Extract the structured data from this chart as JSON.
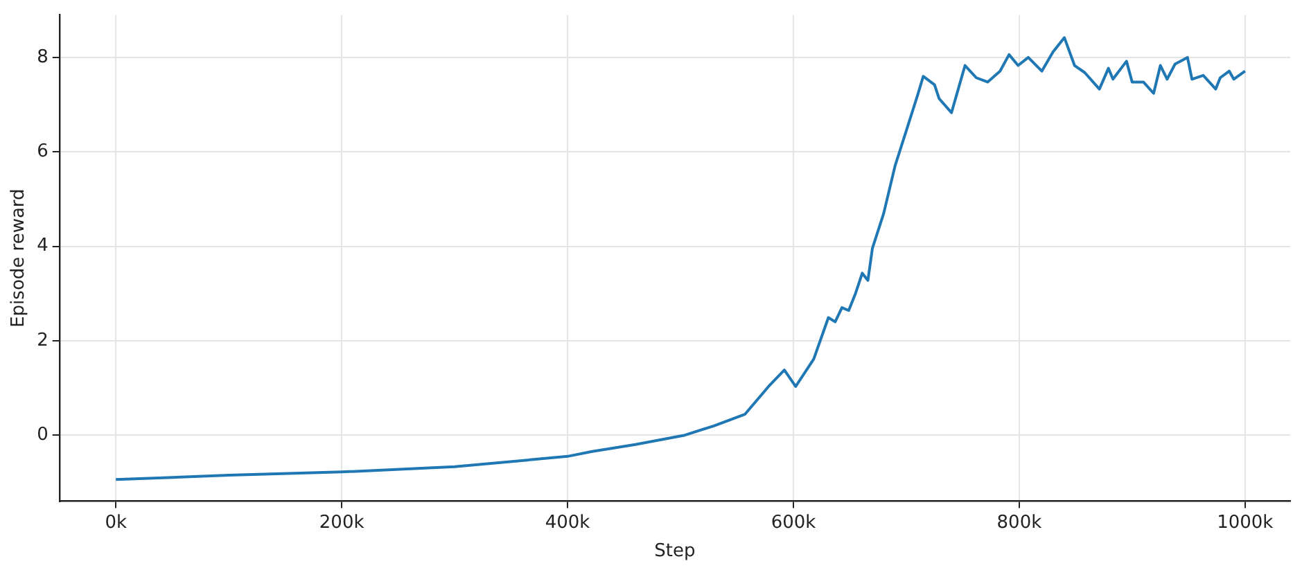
{
  "chart_data": {
    "type": "line",
    "xlabel": "Step",
    "ylabel": "Episode reward",
    "xlim": [
      -50000,
      1040000
    ],
    "ylim": [
      -1.4,
      8.9
    ],
    "xticks": [
      {
        "value": 0,
        "label": "0k"
      },
      {
        "value": 200000,
        "label": "200k"
      },
      {
        "value": 400000,
        "label": "400k"
      },
      {
        "value": 600000,
        "label": "600k"
      },
      {
        "value": 800000,
        "label": "800k"
      },
      {
        "value": 1000000,
        "label": "1000k"
      }
    ],
    "yticks": [
      0,
      2,
      4,
      6,
      8
    ],
    "grid": true,
    "legend": false,
    "marker": "none",
    "line_style": "solid",
    "series": [
      {
        "color": "#1f77b4",
        "x": [
          0,
          100000,
          200000,
          300000,
          400000,
          421000,
          460000,
          504000,
          530000,
          557000,
          578000,
          592000,
          602000,
          618000,
          631000,
          637000,
          643000,
          649000,
          655000,
          661000,
          666000,
          670000,
          680000,
          690000,
          700000,
          710000,
          715000,
          725000,
          729000,
          740000,
          746000,
          752000,
          762000,
          772000,
          783000,
          791000,
          799000,
          808000,
          820000,
          830000,
          840000,
          849000,
          858000,
          871000,
          879000,
          883000,
          895000,
          900000,
          910000,
          919000,
          925000,
          931000,
          938000,
          949000,
          953000,
          963000,
          974000,
          978000,
          986000,
          990000,
          1000000
        ],
        "values": [
          -0.94,
          -0.85,
          -0.78,
          -0.67,
          -0.45,
          -0.35,
          -0.2,
          0.0,
          0.2,
          0.44,
          1.03,
          1.38,
          1.03,
          1.61,
          2.49,
          2.4,
          2.7,
          2.64,
          3.0,
          3.43,
          3.28,
          3.96,
          4.7,
          5.7,
          6.45,
          7.2,
          7.6,
          7.42,
          7.13,
          6.83,
          7.33,
          7.83,
          7.57,
          7.48,
          7.71,
          8.06,
          7.83,
          8.0,
          7.71,
          8.12,
          8.42,
          7.83,
          7.68,
          7.33,
          7.77,
          7.54,
          7.92,
          7.48,
          7.48,
          7.24,
          7.83,
          7.54,
          7.86,
          8.0,
          7.54,
          7.62,
          7.33,
          7.57,
          7.71,
          7.54,
          7.71
        ]
      }
    ]
  }
}
